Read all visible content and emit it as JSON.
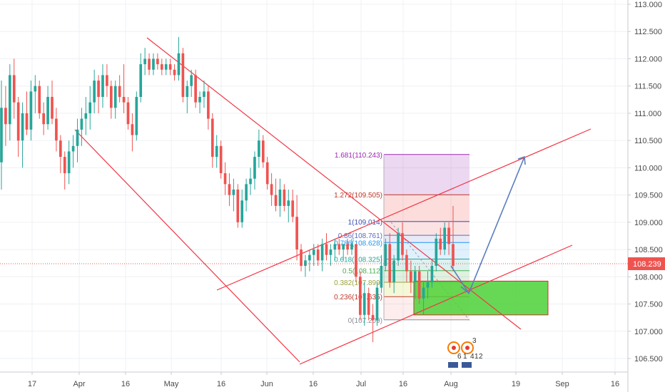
{
  "chart_data": {
    "type": "candlestick",
    "price_axis": {
      "ticks": [
        "106.500",
        "107.000",
        "107.500",
        "108.000",
        "108.500",
        "109.000",
        "109.500",
        "110.000",
        "110.500",
        "111.000",
        "111.500",
        "112.000",
        "112.500",
        "113.000"
      ],
      "ylim": [
        106.25,
        113.05
      ]
    },
    "time_axis": {
      "ticks": [
        "17",
        "Apr",
        "16",
        "May",
        "16",
        "Jun",
        "16",
        "Jul",
        "16",
        "Aug",
        "19",
        "Sep",
        "16"
      ]
    },
    "last_price": {
      "value": 108.239,
      "label": "108.239"
    },
    "colors": {
      "up": "#26a69a",
      "down": "#ef5350",
      "channel": "#f23645",
      "arrow": "#5b7ebf",
      "grid": "#eef0f4",
      "target_zone": "#4cd137"
    },
    "candles": [
      {
        "o": 110.1,
        "h": 111.6,
        "l": 109.6,
        "c": 111.1
      },
      {
        "o": 111.1,
        "h": 111.5,
        "l": 110.4,
        "c": 110.8
      },
      {
        "o": 110.8,
        "h": 111.9,
        "l": 110.5,
        "c": 111.7
      },
      {
        "o": 111.7,
        "h": 112.0,
        "l": 110.9,
        "c": 111.2
      },
      {
        "o": 111.2,
        "h": 111.3,
        "l": 110.2,
        "c": 110.5
      },
      {
        "o": 110.5,
        "h": 111.2,
        "l": 110.0,
        "c": 111.0
      },
      {
        "o": 111.0,
        "h": 111.4,
        "l": 110.6,
        "c": 110.7
      },
      {
        "o": 110.7,
        "h": 111.6,
        "l": 110.5,
        "c": 111.4
      },
      {
        "o": 111.4,
        "h": 111.7,
        "l": 111.0,
        "c": 111.5
      },
      {
        "o": 111.5,
        "h": 111.6,
        "l": 110.9,
        "c": 111.0
      },
      {
        "o": 111.0,
        "h": 111.2,
        "l": 110.6,
        "c": 110.8
      },
      {
        "o": 110.8,
        "h": 111.5,
        "l": 110.7,
        "c": 111.3
      },
      {
        "o": 111.3,
        "h": 111.6,
        "l": 110.8,
        "c": 110.9
      },
      {
        "o": 110.9,
        "h": 111.1,
        "l": 110.3,
        "c": 110.5
      },
      {
        "o": 110.5,
        "h": 110.6,
        "l": 109.9,
        "c": 110.2
      },
      {
        "o": 110.2,
        "h": 110.3,
        "l": 109.6,
        "c": 109.9
      },
      {
        "o": 109.9,
        "h": 110.5,
        "l": 109.7,
        "c": 110.3
      },
      {
        "o": 110.3,
        "h": 110.6,
        "l": 110.0,
        "c": 110.4
      },
      {
        "o": 110.4,
        "h": 110.9,
        "l": 110.1,
        "c": 110.7
      },
      {
        "o": 110.7,
        "h": 111.1,
        "l": 110.4,
        "c": 110.9
      },
      {
        "o": 110.9,
        "h": 111.3,
        "l": 110.6,
        "c": 111.0
      },
      {
        "o": 111.0,
        "h": 111.5,
        "l": 110.7,
        "c": 111.2
      },
      {
        "o": 111.2,
        "h": 111.8,
        "l": 111.0,
        "c": 111.6
      },
      {
        "o": 111.6,
        "h": 111.7,
        "l": 111.0,
        "c": 111.3
      },
      {
        "o": 111.3,
        "h": 111.9,
        "l": 111.1,
        "c": 111.7
      },
      {
        "o": 111.7,
        "h": 111.9,
        "l": 111.3,
        "c": 111.5
      },
      {
        "o": 111.5,
        "h": 111.6,
        "l": 110.9,
        "c": 111.1
      },
      {
        "o": 111.1,
        "h": 111.6,
        "l": 110.9,
        "c": 111.5
      },
      {
        "o": 111.5,
        "h": 111.7,
        "l": 111.2,
        "c": 111.3
      },
      {
        "o": 111.3,
        "h": 111.9,
        "l": 111.0,
        "c": 111.2
      },
      {
        "o": 111.2,
        "h": 111.3,
        "l": 110.7,
        "c": 110.8
      },
      {
        "o": 110.8,
        "h": 111.0,
        "l": 110.3,
        "c": 110.6
      },
      {
        "o": 110.6,
        "h": 111.4,
        "l": 110.5,
        "c": 111.3
      },
      {
        "o": 111.3,
        "h": 112.1,
        "l": 111.2,
        "c": 111.9
      },
      {
        "o": 111.9,
        "h": 112.2,
        "l": 111.7,
        "c": 112.0
      },
      {
        "o": 112.0,
        "h": 112.1,
        "l": 111.7,
        "c": 111.8
      },
      {
        "o": 111.8,
        "h": 112.1,
        "l": 111.7,
        "c": 112.0
      },
      {
        "o": 112.0,
        "h": 112.1,
        "l": 111.8,
        "c": 111.9
      },
      {
        "o": 111.9,
        "h": 112.0,
        "l": 111.7,
        "c": 111.8
      },
      {
        "o": 111.8,
        "h": 112.0,
        "l": 111.7,
        "c": 111.9
      },
      {
        "o": 111.9,
        "h": 112.0,
        "l": 111.7,
        "c": 111.8
      },
      {
        "o": 111.8,
        "h": 111.9,
        "l": 111.6,
        "c": 111.7
      },
      {
        "o": 111.7,
        "h": 112.4,
        "l": 111.6,
        "c": 112.1
      },
      {
        "o": 112.1,
        "h": 112.2,
        "l": 111.2,
        "c": 111.3
      },
      {
        "o": 111.3,
        "h": 111.6,
        "l": 111.0,
        "c": 111.5
      },
      {
        "o": 111.5,
        "h": 111.8,
        "l": 111.3,
        "c": 111.7
      },
      {
        "o": 111.7,
        "h": 111.8,
        "l": 111.1,
        "c": 111.2
      },
      {
        "o": 111.2,
        "h": 111.4,
        "l": 111.0,
        "c": 111.3
      },
      {
        "o": 111.3,
        "h": 111.6,
        "l": 111.1,
        "c": 111.4
      },
      {
        "o": 111.4,
        "h": 111.5,
        "l": 110.7,
        "c": 110.9
      },
      {
        "o": 110.9,
        "h": 111.0,
        "l": 110.0,
        "c": 110.2
      },
      {
        "o": 110.2,
        "h": 110.6,
        "l": 110.0,
        "c": 110.4
      },
      {
        "o": 110.4,
        "h": 110.5,
        "l": 109.8,
        "c": 109.9
      },
      {
        "o": 109.9,
        "h": 110.1,
        "l": 109.5,
        "c": 109.7
      },
      {
        "o": 109.7,
        "h": 109.9,
        "l": 109.3,
        "c": 109.5
      },
      {
        "o": 109.5,
        "h": 109.8,
        "l": 109.2,
        "c": 109.6
      },
      {
        "o": 109.6,
        "h": 109.7,
        "l": 108.9,
        "c": 109.0
      },
      {
        "o": 109.0,
        "h": 109.6,
        "l": 108.9,
        "c": 109.4
      },
      {
        "o": 109.4,
        "h": 109.8,
        "l": 109.2,
        "c": 109.7
      },
      {
        "o": 109.7,
        "h": 110.0,
        "l": 109.5,
        "c": 109.8
      },
      {
        "o": 109.8,
        "h": 110.3,
        "l": 109.6,
        "c": 110.2
      },
      {
        "o": 110.2,
        "h": 110.7,
        "l": 110.0,
        "c": 110.5
      },
      {
        "o": 110.5,
        "h": 110.6,
        "l": 110.0,
        "c": 110.1
      },
      {
        "o": 110.1,
        "h": 110.2,
        "l": 109.6,
        "c": 109.7
      },
      {
        "o": 109.7,
        "h": 109.9,
        "l": 109.3,
        "c": 109.5
      },
      {
        "o": 109.5,
        "h": 109.8,
        "l": 109.2,
        "c": 109.3
      },
      {
        "o": 109.3,
        "h": 109.8,
        "l": 109.1,
        "c": 109.6
      },
      {
        "o": 109.6,
        "h": 109.7,
        "l": 109.2,
        "c": 109.3
      },
      {
        "o": 109.3,
        "h": 109.6,
        "l": 109.0,
        "c": 109.4
      },
      {
        "o": 109.4,
        "h": 109.6,
        "l": 109.0,
        "c": 109.1
      },
      {
        "o": 109.1,
        "h": 109.5,
        "l": 108.3,
        "c": 108.5
      },
      {
        "o": 108.5,
        "h": 108.6,
        "l": 108.1,
        "c": 108.2
      },
      {
        "o": 108.2,
        "h": 108.4,
        "l": 108.0,
        "c": 108.3
      },
      {
        "o": 108.3,
        "h": 108.5,
        "l": 108.1,
        "c": 108.4
      },
      {
        "o": 108.4,
        "h": 108.6,
        "l": 108.2,
        "c": 108.5
      },
      {
        "o": 108.5,
        "h": 108.6,
        "l": 108.2,
        "c": 108.3
      },
      {
        "o": 108.3,
        "h": 108.7,
        "l": 108.1,
        "c": 108.6
      },
      {
        "o": 108.6,
        "h": 108.8,
        "l": 108.3,
        "c": 108.4
      },
      {
        "o": 108.4,
        "h": 108.6,
        "l": 108.2,
        "c": 108.5
      },
      {
        "o": 108.5,
        "h": 108.7,
        "l": 108.3,
        "c": 108.6
      },
      {
        "o": 108.6,
        "h": 108.7,
        "l": 108.4,
        "c": 108.5
      },
      {
        "o": 108.5,
        "h": 108.6,
        "l": 108.3,
        "c": 108.6
      },
      {
        "o": 108.6,
        "h": 108.7,
        "l": 108.4,
        "c": 108.5
      },
      {
        "o": 108.5,
        "h": 108.7,
        "l": 108.4,
        "c": 108.6
      },
      {
        "o": 108.6,
        "h": 108.6,
        "l": 107.9,
        "c": 108.0
      },
      {
        "o": 108.0,
        "h": 108.1,
        "l": 107.2,
        "c": 107.3
      },
      {
        "o": 107.3,
        "h": 107.9,
        "l": 107.1,
        "c": 107.7
      },
      {
        "o": 107.7,
        "h": 107.8,
        "l": 107.2,
        "c": 107.3
      },
      {
        "o": 107.3,
        "h": 107.5,
        "l": 106.8,
        "c": 107.2
      },
      {
        "o": 107.2,
        "h": 107.9,
        "l": 107.1,
        "c": 107.8
      },
      {
        "o": 107.8,
        "h": 108.4,
        "l": 107.7,
        "c": 108.2
      },
      {
        "o": 108.2,
        "h": 108.7,
        "l": 108.1,
        "c": 108.6
      },
      {
        "o": 108.6,
        "h": 108.8,
        "l": 107.8,
        "c": 107.9
      },
      {
        "o": 107.9,
        "h": 108.4,
        "l": 107.7,
        "c": 108.3
      },
      {
        "o": 108.3,
        "h": 108.9,
        "l": 108.2,
        "c": 108.8
      },
      {
        "o": 108.8,
        "h": 109.0,
        "l": 108.3,
        "c": 108.4
      },
      {
        "o": 108.4,
        "h": 108.5,
        "l": 107.9,
        "c": 108.1
      },
      {
        "o": 108.1,
        "h": 108.3,
        "l": 107.7,
        "c": 107.9
      },
      {
        "o": 107.9,
        "h": 108.2,
        "l": 107.6,
        "c": 108.1
      },
      {
        "o": 108.1,
        "h": 108.2,
        "l": 107.5,
        "c": 107.6
      },
      {
        "o": 107.6,
        "h": 107.9,
        "l": 107.3,
        "c": 107.8
      },
      {
        "o": 107.8,
        "h": 108.1,
        "l": 107.6,
        "c": 107.9
      },
      {
        "o": 107.9,
        "h": 108.3,
        "l": 107.8,
        "c": 108.2
      },
      {
        "o": 108.2,
        "h": 108.8,
        "l": 108.1,
        "c": 108.7
      },
      {
        "o": 108.7,
        "h": 108.9,
        "l": 108.4,
        "c": 108.5
      },
      {
        "o": 108.5,
        "h": 109.0,
        "l": 108.4,
        "c": 108.9
      },
      {
        "o": 108.9,
        "h": 109.0,
        "l": 108.4,
        "c": 108.6
      },
      {
        "o": 108.6,
        "h": 109.3,
        "l": 108.1,
        "c": 108.2
      }
    ],
    "fib_levels": [
      {
        "label": "0(107.209)",
        "value": 107.209
      },
      {
        "label": "0.236(107.635)",
        "value": 107.635
      },
      {
        "label": "0.382(107.899)",
        "value": 107.899
      },
      {
        "label": "0.5(108.112)",
        "value": 108.112
      },
      {
        "label": "0.618(108.325)",
        "value": 108.325
      },
      {
        "label": "0.786(108.628)",
        "value": 108.628
      },
      {
        "label": "0.86(108.761)",
        "value": 108.761
      },
      {
        "label": "1(109.014)",
        "value": 109.014
      },
      {
        "label": "1.272(109.505)",
        "value": 109.505
      },
      {
        "label": "1.681(110.243)",
        "value": 110.243
      }
    ],
    "target_zone": {
      "from": 107.3,
      "to": 107.92
    },
    "projection": [
      108.2,
      107.7,
      110.2
    ],
    "events": [
      "3",
      "6",
      "1",
      "4",
      "1",
      "2"
    ]
  }
}
